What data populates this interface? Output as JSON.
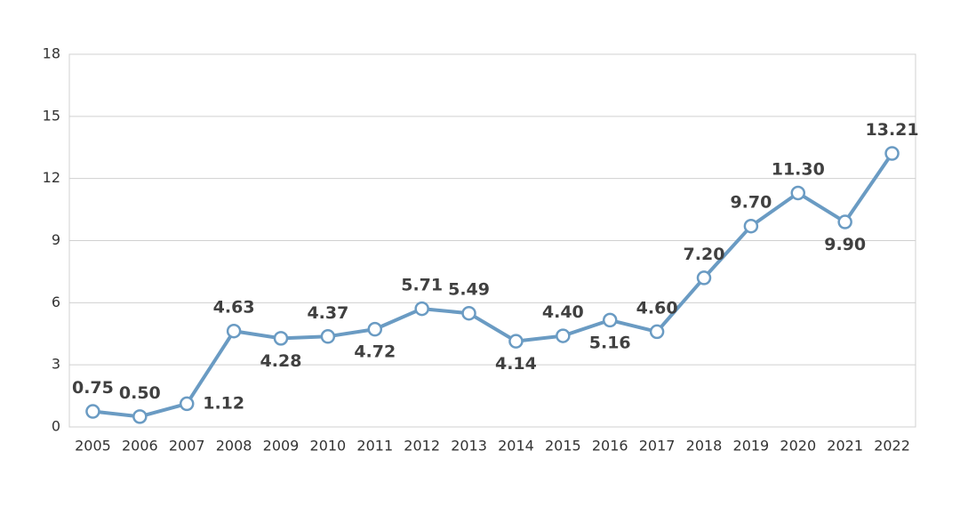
{
  "chart_data": {
    "type": "line",
    "categories": [
      "2005",
      "2006",
      "2007",
      "2008",
      "2009",
      "2010",
      "2011",
      "2012",
      "2013",
      "2014",
      "2015",
      "2016",
      "2017",
      "2018",
      "2019",
      "2020",
      "2021",
      "2022"
    ],
    "values": [
      0.75,
      0.5,
      1.12,
      4.63,
      4.28,
      4.37,
      4.72,
      5.71,
      5.49,
      4.14,
      4.4,
      5.16,
      4.6,
      7.2,
      9.7,
      11.3,
      9.9,
      13.21
    ],
    "value_labels": [
      "0.75",
      "0.50",
      "1.12",
      "4.63",
      "4.28",
      "4.37",
      "4.72",
      "5.71",
      "5.49",
      "4.14",
      "4.40",
      "5.16",
      "4.60",
      "7.20",
      "9.70",
      "11.30",
      "9.90",
      "13.21"
    ],
    "color": "#6a9bc3",
    "ylim": [
      0,
      18
    ],
    "yticks": [
      0,
      3,
      6,
      9,
      12,
      15,
      18
    ],
    "grid": true
  }
}
